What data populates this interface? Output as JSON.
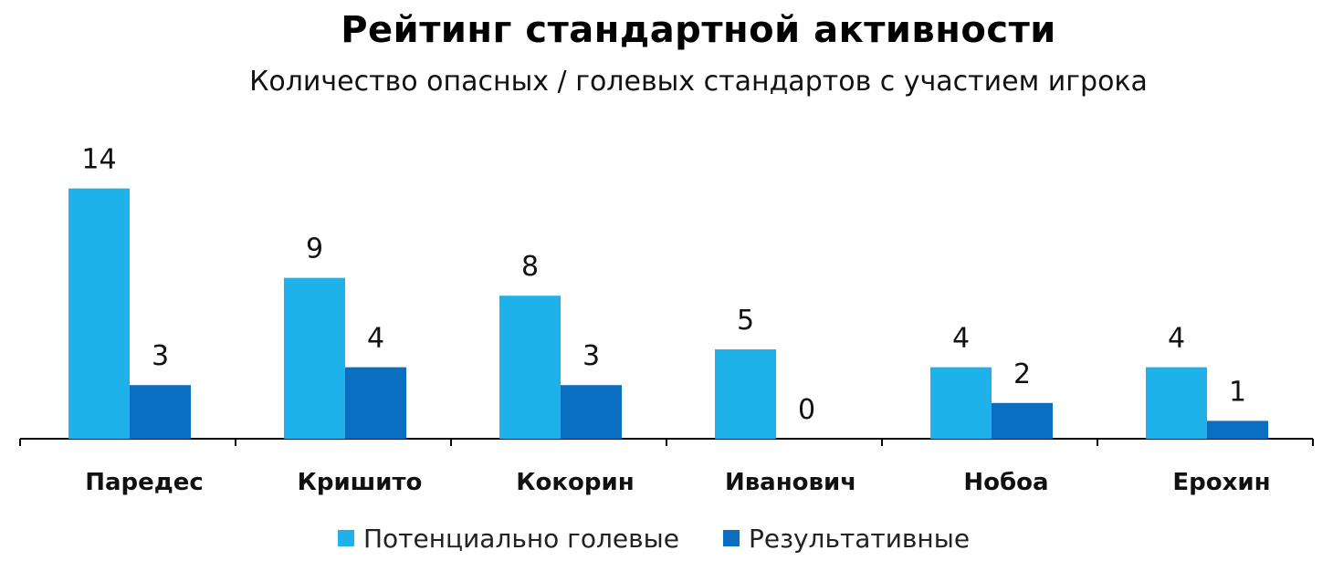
{
  "chart_data": {
    "type": "bar",
    "title": "Рейтинг стандартной активности",
    "subtitle": "Количество опасных / голевых стандартов с участием игрока",
    "categories": [
      "Паредес",
      "Кришито",
      "Кокорин",
      "Иванович",
      "Нобоа",
      "Ерохин"
    ],
    "series": [
      {
        "name": "Потенциально голевые",
        "values": [
          14,
          9,
          8,
          5,
          4,
          4
        ],
        "color": "#1fb1ea"
      },
      {
        "name": "Результативные",
        "values": [
          3,
          4,
          3,
          0,
          2,
          1
        ],
        "color": "#0b6fc1"
      }
    ],
    "ylim": [
      0,
      14
    ],
    "grid": false,
    "legend": "bottom"
  }
}
